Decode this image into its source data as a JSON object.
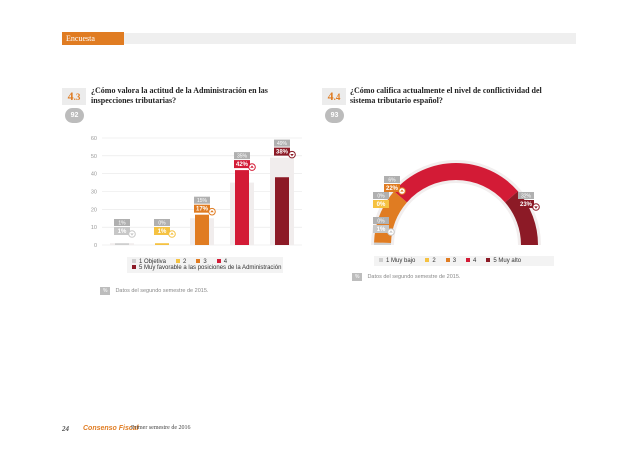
{
  "header": {
    "tab_label": "Encuesta"
  },
  "colors": {
    "accent": "#e07c22",
    "c1": "#cfcfcf",
    "c2": "#f5c242",
    "c3": "#e07c22",
    "c4": "#d31b36",
    "c5": "#8c1a26",
    "prev": "#b0b0b0"
  },
  "questions": [
    {
      "number_main": "4",
      "number_sub": ".3",
      "count": "92",
      "text_line1": "¿Cómo valora la actitud de la Administración en las",
      "text_line2": "inspecciones tributarias?"
    },
    {
      "number_main": "4",
      "number_sub": ".4",
      "count": "93",
      "text_line1": "¿Cómo califica actualmente el nivel de conflictividad del",
      "text_line2": "sistema tributario español?"
    }
  ],
  "chart_data": [
    {
      "type": "bar",
      "categories": [
        "1 Objetiva",
        "2",
        "3",
        "4",
        "5 Muy favorable a las posiciones de la Administración"
      ],
      "values": [
        1,
        1,
        17,
        42,
        38
      ],
      "value_labels": [
        "1%",
        "1%",
        "17%",
        "42%",
        "38%"
      ],
      "previous_values": [
        1,
        0,
        15,
        35,
        49
      ],
      "previous_labels": [
        "1%",
        "0%",
        "15%",
        "35%",
        "49%"
      ],
      "trend_icons": [
        "down-arrow",
        "up-arrow",
        "up-arrow",
        "up-arrow",
        "down-arrow"
      ],
      "ylim": [
        0,
        60
      ],
      "yticks": [
        "0",
        "10",
        "20",
        "30",
        "40",
        "50",
        "60"
      ],
      "ytick_values": [
        0,
        10,
        20,
        30,
        40,
        50,
        60
      ],
      "grid": true,
      "legend": [
        "1 Objetiva",
        "2",
        "3",
        "4",
        "5 Muy favorable a las posiciones de la Administración"
      ],
      "note_box": "%",
      "note": "Datos del segundo semestre de 2015."
    },
    {
      "type": "pie",
      "subtype": "semicircle-gauge",
      "categories": [
        "1 Muy bajo",
        "2",
        "3",
        "4",
        "5 Muy alto"
      ],
      "values": [
        1,
        0,
        22,
        55,
        23
      ],
      "value_labels": [
        "1%",
        "0%",
        "22%",
        "55%",
        "23%"
      ],
      "previous_labels": [
        "0%",
        "0%",
        "6%",
        "62%",
        "32%"
      ],
      "trend_icons": [
        "up-arrow",
        "",
        "up-arrow",
        "down-arrow",
        "down-arrow"
      ],
      "legend": [
        "1 Muy bajo",
        "2",
        "3",
        "4",
        "5 Muy alto"
      ],
      "note_box": "%",
      "note": "Datos del segundo semestre de 2015."
    }
  ],
  "footer": {
    "page": "24",
    "brand": "Consenso Fiscal",
    "date": "Primer semestre de 2016"
  }
}
